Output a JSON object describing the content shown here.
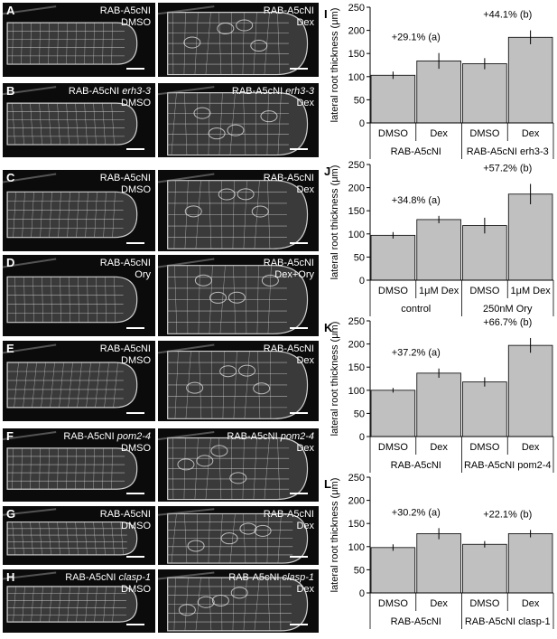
{
  "micro_panels": [
    {
      "letter": "A",
      "left": {
        "line": "RAB-A5cNI",
        "gene": "",
        "treatment": "DMSO"
      },
      "right": {
        "line": "RAB-A5cNI",
        "gene": "",
        "treatment": "Dex"
      }
    },
    {
      "letter": "B",
      "left": {
        "line": "RAB-A5cNI",
        "gene": "erh3-3",
        "treatment": "DMSO"
      },
      "right": {
        "line": "RAB-A5cNI",
        "gene": "erh3-3",
        "treatment": "Dex"
      }
    },
    {
      "letter": "C",
      "left": {
        "line": "RAB-A5cNI",
        "gene": "",
        "treatment": "DMSO"
      },
      "right": {
        "line": "RAB-A5cNI",
        "gene": "",
        "treatment": "Dex"
      }
    },
    {
      "letter": "D",
      "left": {
        "line": "RAB-A5cNI",
        "gene": "",
        "treatment": "Ory"
      },
      "right": {
        "line": "RAB-A5cNI",
        "gene": "",
        "treatment": "Dex+Ory"
      }
    },
    {
      "letter": "E",
      "left": {
        "line": "RAB-A5cNI",
        "gene": "",
        "treatment": "DMSO"
      },
      "right": {
        "line": "RAB-A5cNI",
        "gene": "",
        "treatment": "Dex"
      }
    },
    {
      "letter": "F",
      "left": {
        "line": "RAB-A5cNI",
        "gene": "pom2-4",
        "treatment": "DMSO"
      },
      "right": {
        "line": "RAB-A5cNI",
        "gene": "pom2-4",
        "treatment": "Dex"
      }
    },
    {
      "letter": "G",
      "left": {
        "line": "RAB-A5cNI",
        "gene": "",
        "treatment": "DMSO"
      },
      "right": {
        "line": "RAB-A5cNI",
        "gene": "",
        "treatment": "Dex"
      }
    },
    {
      "letter": "H",
      "left": {
        "line": "RAB-A5cNI",
        "gene": "clasp-1",
        "treatment": "DMSO"
      },
      "right": {
        "line": "RAB-A5cNI",
        "gene": "clasp-1",
        "treatment": "Dex"
      }
    }
  ],
  "chart_data": [
    {
      "letter": "I",
      "type": "bar",
      "ylabel": "lateral root thickness (μm)",
      "ylim": [
        0,
        250
      ],
      "yticks": [
        0,
        50,
        100,
        150,
        200,
        250
      ],
      "categories": [
        "DMSO",
        "Dex",
        "DMSO",
        "Dex"
      ],
      "values": [
        103,
        134,
        128,
        185
      ],
      "errors": [
        8,
        17,
        12,
        15
      ],
      "groups": [
        "RAB-A5cNI",
        "RAB-A5cNI erh3-3"
      ],
      "annotations": [
        {
          "text": "+29.1% (a)",
          "group": 0
        },
        {
          "text": "+44.1% (b)",
          "group": 1
        }
      ]
    },
    {
      "letter": "J",
      "type": "bar",
      "ylabel": "lateral root thickness (μm)",
      "ylim": [
        0,
        250
      ],
      "yticks": [
        0,
        50,
        100,
        150,
        200,
        250
      ],
      "categories": [
        "DMSO",
        "1μM Dex",
        "DMSO",
        "1μM Dex"
      ],
      "values": [
        97,
        131,
        118,
        186
      ],
      "errors": [
        7,
        8,
        17,
        22
      ],
      "groups": [
        "control",
        "250nM Ory"
      ],
      "annotations": [
        {
          "text": "+34.8% (a)",
          "group": 0
        },
        {
          "text": "+57.2% (b)",
          "group": 1
        }
      ]
    },
    {
      "letter": "K",
      "type": "bar",
      "ylabel": "lateral root thickness (μm)",
      "ylim": [
        0,
        250
      ],
      "yticks": [
        0,
        50,
        100,
        150,
        200,
        250
      ],
      "categories": [
        "DMSO",
        "Dex",
        "DMSO",
        "Dex"
      ],
      "values": [
        100,
        137,
        118,
        197
      ],
      "errors": [
        5,
        10,
        10,
        16
      ],
      "groups": [
        "RAB-A5cNI",
        "RAB-A5cNI pom2-4"
      ],
      "annotations": [
        {
          "text": "+37.2% (a)",
          "group": 0
        },
        {
          "text": "+66.7% (b)",
          "group": 1
        }
      ]
    },
    {
      "letter": "L",
      "type": "bar",
      "ylabel": "lateral root thickness (μm)",
      "ylim": [
        0,
        250
      ],
      "yticks": [
        0,
        50,
        100,
        150,
        200,
        250
      ],
      "categories": [
        "DMSO",
        "Dex",
        "DMSO",
        "Dex"
      ],
      "values": [
        98,
        128,
        105,
        128
      ],
      "errors": [
        7,
        12,
        7,
        8
      ],
      "groups": [
        "RAB-A5cNI",
        "RAB-A5cNI clasp-1"
      ],
      "annotations": [
        {
          "text": "+30.2% (a)",
          "group": 0
        },
        {
          "text": "+22.1% (b)",
          "group": 1
        }
      ]
    }
  ],
  "colors": {
    "bar_fill": "#c0c0c0",
    "bar_stroke": "#000000",
    "panel_bg": "#0b0b0b",
    "cell_wall": "#cfcfcf"
  }
}
